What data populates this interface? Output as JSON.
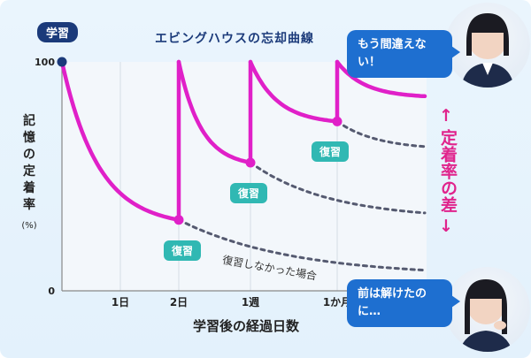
{
  "badge": "学習",
  "chart_data": {
    "type": "line",
    "title": "エビングハウスの忘却曲線",
    "ylabel": "記憶の定着率",
    "yunit": "(%)",
    "xlabel": "学習後の経過日数",
    "ylim": [
      0,
      100
    ],
    "yticks": [
      "100",
      "0"
    ],
    "xticks": [
      "1日",
      "2日",
      "1週",
      "1か月"
    ],
    "series": [
      {
        "name": "復習",
        "color": "#e020c8",
        "segments": [
          {
            "from": "学習",
            "to": "2日",
            "start": 100,
            "end": 31
          },
          {
            "from": "2日",
            "to": "1週",
            "start": 100,
            "end": 56
          },
          {
            "from": "1週",
            "to": "1か月",
            "start": 100,
            "end": 74
          },
          {
            "from": "1か月",
            "to": "end",
            "start": 100,
            "end": 85
          }
        ]
      },
      {
        "name": "復習しなかった場合",
        "color": "#555a70",
        "segments": [
          {
            "from": "2日",
            "to": "end",
            "start": 31,
            "end": 9
          },
          {
            "from": "1週",
            "to": "end",
            "start": 56,
            "end": 34
          },
          {
            "from": "1か月",
            "to": "end",
            "start": 74,
            "end": 63
          }
        ]
      }
    ],
    "annotations": [
      "復習",
      "復習",
      "復習",
      "復習しなかった場合"
    ]
  },
  "side_label": "定着率の差",
  "bubble_top": "もう間違えない！",
  "bubble_bottom": "前は解けたのに…"
}
